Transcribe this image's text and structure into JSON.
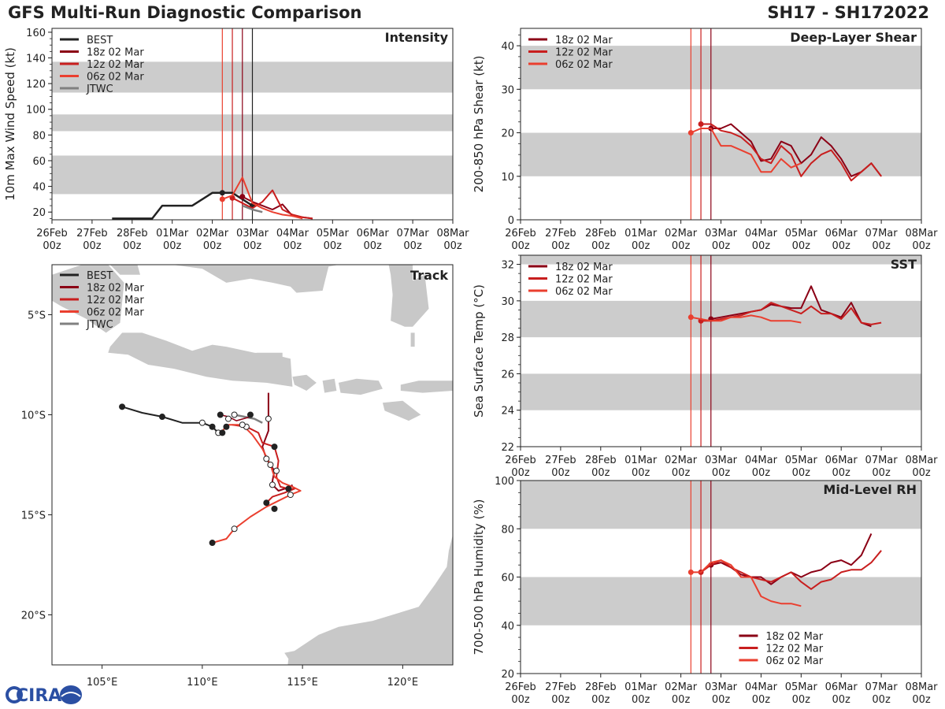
{
  "header": {
    "title_left": "GFS Multi-Run Diagnostic Comparison",
    "title_right": "SH17 - SH172022",
    "logo_text": "CIRA"
  },
  "colors": {
    "best": "#222222",
    "r18": "#8b0015",
    "r12": "#c81e1e",
    "r06": "#ea3f2f",
    "jtwc": "#808080",
    "band": "#cccccc",
    "land": "#c8c8c8"
  },
  "time_axis": {
    "ticks": [
      {
        "t": 0,
        "label": "26Feb 00z"
      },
      {
        "t": 1,
        "label": "27Feb 00z"
      },
      {
        "t": 2,
        "label": "28Feb 00z"
      },
      {
        "t": 3,
        "label": "01Mar 00z"
      },
      {
        "t": 4,
        "label": "02Mar 00z"
      },
      {
        "t": 5,
        "label": "03Mar 00z"
      },
      {
        "t": 6,
        "label": "04Mar 00z"
      },
      {
        "t": 7,
        "label": "05Mar 00z"
      },
      {
        "t": 8,
        "label": "06Mar 00z"
      },
      {
        "t": 9,
        "label": "07Mar 00z"
      },
      {
        "t": 10,
        "label": "08Mar 00z"
      }
    ],
    "vlines_main": [
      {
        "t": 4.25,
        "run": "r06"
      },
      {
        "t": 4.5,
        "run": "r12"
      },
      {
        "t": 4.75,
        "run": "r18"
      },
      {
        "t": 5.0,
        "run": "best"
      }
    ],
    "vlines_side": [
      {
        "t": 4.25,
        "run": "r06"
      },
      {
        "t": 4.5,
        "run": "r12"
      },
      {
        "t": 4.75,
        "run": "r18"
      }
    ]
  },
  "chart_data": [
    {
      "id": "intensity",
      "type": "line",
      "title": "Intensity",
      "ylabel": "10m Max Wind Speed (kt)",
      "xlim": [
        0,
        10
      ],
      "ylim": [
        14,
        163
      ],
      "yticks": [
        20,
        40,
        60,
        80,
        100,
        120,
        140,
        160
      ],
      "bands": [
        [
          34,
          64
        ],
        [
          83,
          96
        ],
        [
          113,
          137
        ]
      ],
      "legend": [
        "BEST",
        "18z 02 Mar",
        "12z 02 Mar",
        "06z 02 Mar",
        "JTWC"
      ],
      "series": [
        {
          "name": "BEST",
          "color": "best",
          "width": 2.5,
          "x": [
            1.5,
            2,
            2.5,
            2.75,
            3,
            3.25,
            3.5,
            3.75,
            4,
            4.25,
            4.5,
            4.75,
            5.0
          ],
          "y": [
            15,
            15,
            15,
            25,
            25,
            25,
            25,
            30,
            35,
            35,
            35,
            30,
            25
          ],
          "markers": [
            4.25,
            5.0
          ]
        },
        {
          "name": "18z 02 Mar",
          "color": "r18",
          "width": 2,
          "x": [
            4.75,
            5.0,
            5.25,
            5.5,
            5.75,
            6.0,
            6.25,
            6.5
          ],
          "y": [
            32,
            28,
            25,
            22,
            26,
            17,
            16,
            15
          ],
          "markers": [
            4.75
          ]
        },
        {
          "name": "12z 02 Mar",
          "color": "r12",
          "width": 2,
          "x": [
            4.5,
            4.75,
            5.0,
            5.25,
            5.5,
            5.75,
            6.0,
            6.25,
            6.5
          ],
          "y": [
            31,
            27,
            23,
            28,
            37,
            22,
            18,
            16,
            15
          ],
          "markers": [
            4.5
          ]
        },
        {
          "name": "06z 02 Mar",
          "color": "r06",
          "width": 2,
          "x": [
            4.25,
            4.5,
            4.75,
            5.0,
            5.25,
            5.5,
            5.75,
            6.0,
            6.25
          ],
          "y": [
            30,
            33,
            47,
            27,
            23,
            20,
            18,
            17,
            15
          ],
          "markers": [
            4.25
          ]
        },
        {
          "name": "JTWC",
          "color": "jtwc",
          "width": 2.5,
          "x": [
            4.75,
            5.0,
            5.25
          ],
          "y": [
            25,
            22,
            20
          ],
          "markers": []
        }
      ]
    },
    {
      "id": "shear",
      "type": "line",
      "title": "Deep-Layer Shear",
      "ylabel": "200-850 hPa Shear (kt)",
      "xlim": [
        0,
        10
      ],
      "ylim": [
        0,
        44
      ],
      "yticks": [
        0,
        10,
        20,
        30,
        40
      ],
      "bands": [
        [
          10,
          20
        ],
        [
          30,
          40
        ]
      ],
      "legend": [
        "18z 02 Mar",
        "12z 02 Mar",
        "06z 02 Mar"
      ],
      "series": [
        {
          "name": "18z 02 Mar",
          "color": "r18",
          "width": 2,
          "x": [
            4.75,
            5.0,
            5.25,
            5.5,
            5.75,
            6.0,
            6.25,
            6.5,
            6.75,
            7.0,
            7.25,
            7.5,
            7.75,
            8.0,
            8.25,
            8.5,
            8.75,
            9.0
          ],
          "y": [
            21,
            21,
            22,
            20,
            18,
            13.5,
            14,
            18,
            17,
            13,
            15,
            19,
            17,
            14,
            10,
            11,
            13,
            10
          ],
          "markers": [
            4.75
          ]
        },
        {
          "name": "12z 02 Mar",
          "color": "r12",
          "width": 2,
          "x": [
            4.5,
            4.75,
            5.0,
            5.25,
            5.5,
            5.75,
            6.0,
            6.25,
            6.5,
            6.75,
            7.0,
            7.25,
            7.5,
            7.75,
            8.0,
            8.25,
            8.5,
            8.75,
            9.0
          ],
          "y": [
            22,
            22,
            20.5,
            20,
            19,
            17,
            14,
            13,
            17,
            15,
            10,
            13,
            15,
            16,
            13,
            9,
            11,
            13,
            10
          ],
          "markers": [
            4.5
          ]
        },
        {
          "name": "06z 02 Mar",
          "color": "r06",
          "width": 2,
          "x": [
            4.25,
            4.5,
            4.75,
            5.0,
            5.25,
            5.5,
            5.75,
            6.0,
            6.25,
            6.5,
            6.75,
            7.0
          ],
          "y": [
            20,
            21,
            21,
            17,
            17,
            16,
            15,
            11,
            11,
            14,
            12,
            13
          ],
          "markers": [
            4.25
          ]
        }
      ]
    },
    {
      "id": "sst",
      "type": "line",
      "title": "SST",
      "ylabel": "Sea Surface Temp (°C)",
      "xlim": [
        0,
        10
      ],
      "ylim": [
        22,
        32.5
      ],
      "yticks": [
        22,
        24,
        26,
        28,
        30,
        32
      ],
      "bands": [
        [
          24,
          26
        ],
        [
          28,
          30
        ],
        [
          32,
          32.5
        ]
      ],
      "legend": [
        "18z 02 Mar",
        "12z 02 Mar",
        "06z 02 Mar"
      ],
      "series": [
        {
          "name": "18z 02 Mar",
          "color": "r18",
          "width": 2,
          "x": [
            4.75,
            5.0,
            5.25,
            5.5,
            5.75,
            6.0,
            6.25,
            6.5,
            6.75,
            7.0,
            7.25,
            7.5,
            7.75,
            8.0,
            8.25,
            8.5,
            8.75
          ],
          "y": [
            29.0,
            29.1,
            29.2,
            29.3,
            29.4,
            29.5,
            29.8,
            29.7,
            29.6,
            29.6,
            30.8,
            29.5,
            29.3,
            29.1,
            29.9,
            28.8,
            28.6
          ],
          "markers": [
            4.75
          ]
        },
        {
          "name": "12z 02 Mar",
          "color": "r12",
          "width": 2,
          "x": [
            4.5,
            4.75,
            5.0,
            5.25,
            5.5,
            5.75,
            6.0,
            6.25,
            6.5,
            6.75,
            7.0,
            7.25,
            7.5,
            7.75,
            8.0,
            8.25,
            8.5,
            8.75,
            9.0
          ],
          "y": [
            28.9,
            28.9,
            29.0,
            29.1,
            29.2,
            29.4,
            29.5,
            29.9,
            29.7,
            29.5,
            29.3,
            29.7,
            29.3,
            29.3,
            29.0,
            29.6,
            28.8,
            28.7,
            28.8
          ],
          "markers": [
            4.5
          ]
        },
        {
          "name": "06z 02 Mar",
          "color": "r06",
          "width": 2,
          "x": [
            4.25,
            4.5,
            4.75,
            5.0,
            5.25,
            5.5,
            5.75,
            6.0,
            6.25,
            6.5,
            6.75,
            7.0
          ],
          "y": [
            29.1,
            29.0,
            28.9,
            28.9,
            29.1,
            29.1,
            29.2,
            29.1,
            28.9,
            28.9,
            28.9,
            28.8
          ],
          "markers": [
            4.25
          ]
        }
      ]
    },
    {
      "id": "rh",
      "type": "line",
      "title": "Mid-Level RH",
      "ylabel": "700-500 hPa Humidity (%)",
      "xlim": [
        0,
        10
      ],
      "ylim": [
        20,
        100
      ],
      "yticks": [
        20,
        40,
        60,
        80,
        100
      ],
      "bands": [
        [
          40,
          60
        ],
        [
          80,
          100
        ]
      ],
      "legend": [
        "18z 02 Mar",
        "12z 02 Mar",
        "06z 02 Mar"
      ],
      "legend_position": "bottom-right",
      "series": [
        {
          "name": "18z 02 Mar",
          "color": "r18",
          "width": 2,
          "x": [
            4.75,
            5.0,
            5.25,
            5.5,
            5.75,
            6.0,
            6.25,
            6.5,
            6.75,
            7.0,
            7.25,
            7.5,
            7.75,
            8.0,
            8.25,
            8.5,
            8.75
          ],
          "y": [
            65,
            66,
            64,
            61,
            60,
            60,
            57,
            60,
            62,
            60,
            62,
            63,
            66,
            67,
            65,
            69,
            78
          ],
          "markers": [
            4.75
          ]
        },
        {
          "name": "12z 02 Mar",
          "color": "r12",
          "width": 2,
          "x": [
            4.5,
            4.75,
            5.0,
            5.25,
            5.5,
            5.75,
            6.0,
            6.25,
            6.5,
            6.75,
            7.0,
            7.25,
            7.5,
            7.75,
            8.0,
            8.25,
            8.5,
            8.75,
            9.0
          ],
          "y": [
            62,
            65,
            67,
            64,
            62,
            60,
            59,
            58,
            60,
            62,
            58,
            55,
            58,
            59,
            62,
            63,
            63,
            66,
            71
          ],
          "markers": [
            4.5
          ]
        },
        {
          "name": "06z 02 Mar",
          "color": "r06",
          "width": 2,
          "x": [
            4.25,
            4.5,
            4.75,
            5.0,
            5.25,
            5.5,
            5.75,
            6.0,
            6.25,
            6.5,
            6.75,
            7.0
          ],
          "y": [
            62,
            62,
            66,
            67,
            65,
            60,
            60,
            52,
            50,
            49,
            49,
            48
          ],
          "markers": [
            4.25
          ]
        }
      ]
    },
    {
      "id": "track",
      "type": "line",
      "title": "Track",
      "xlabel": "",
      "ylabel": "",
      "xlim": [
        102.5,
        122.5
      ],
      "ylim": [
        -22.5,
        -2.5
      ],
      "xticks": [
        {
          "v": 105,
          "label": "105°E"
        },
        {
          "v": 110,
          "label": "110°E"
        },
        {
          "v": 115,
          "label": "115°E"
        },
        {
          "v": 120,
          "label": "120°E"
        }
      ],
      "yticks": [
        {
          "v": -5,
          "label": "5°S"
        },
        {
          "v": -10,
          "label": "10°S"
        },
        {
          "v": -15,
          "label": "15°S"
        },
        {
          "v": -20,
          "label": "20°S"
        }
      ],
      "legend": [
        "BEST",
        "18z 02 Mar",
        "12z 02 Mar",
        "06z 02 Mar",
        "JTWC"
      ],
      "series": [
        {
          "name": "BEST",
          "color": "best",
          "width": 2,
          "lon": [
            106.0,
            107.0,
            108.0,
            109.0,
            110.0,
            110.5,
            110.8,
            111.0
          ],
          "lat": [
            -9.6,
            -9.9,
            -10.1,
            -10.4,
            -10.4,
            -10.6,
            -10.9,
            -10.9
          ],
          "dots": [
            [
              106.0,
              -9.6,
              "f"
            ],
            [
              108.0,
              -10.1,
              "f"
            ],
            [
              110.0,
              -10.4,
              "o"
            ],
            [
              110.5,
              -10.6,
              "f"
            ],
            [
              110.8,
              -10.9,
              "o"
            ],
            [
              111.0,
              -10.9,
              "f"
            ]
          ]
        },
        {
          "name": "18z 02 Mar",
          "color": "r18",
          "width": 2,
          "lon": [
            113.3,
            113.3,
            113.3,
            113.3,
            113.0,
            113.2,
            113.6,
            113.5,
            113.5,
            113.8,
            114.4,
            114.5
          ],
          "lat": [
            -8.9,
            -9.5,
            -10.2,
            -10.8,
            -11.6,
            -12.2,
            -12.8,
            -13.3,
            -13.5,
            -13.8,
            -13.6,
            -13.5
          ],
          "dots": [
            [
              113.3,
              -10.2,
              "o"
            ],
            [
              113.2,
              -12.2,
              "o"
            ],
            [
              113.5,
              -13.5,
              "o"
            ]
          ]
        },
        {
          "name": "12z 02 Mar",
          "color": "r12",
          "width": 2,
          "lon": [
            111.5,
            112.2,
            112.8,
            113.0,
            113.6,
            113.8,
            113.7,
            113.9,
            114.3,
            114.6,
            114.1,
            113.5,
            113.2
          ],
          "lat": [
            -10.5,
            -10.6,
            -10.9,
            -11.4,
            -11.6,
            -12.3,
            -13.1,
            -13.6,
            -13.7,
            -13.7,
            -13.9,
            -14.1,
            -14.4
          ],
          "dots": [
            [
              112.2,
              -10.6,
              "o"
            ],
            [
              113.6,
              -11.6,
              "f"
            ],
            [
              113.7,
              -12.8,
              "o"
            ],
            [
              114.3,
              -13.7,
              "f"
            ],
            [
              113.2,
              -14.4,
              "f"
            ]
          ]
        },
        {
          "name": "06z 02 Mar",
          "color": "r06",
          "width": 2,
          "lon": [
            111.0,
            111.3,
            112.0,
            112.5,
            113.0,
            113.4,
            113.6,
            114.0,
            114.5,
            114.9,
            114.4,
            113.8,
            113.2,
            112.4,
            111.6,
            111.2,
            110.5
          ],
          "lat": [
            -10.8,
            -10.5,
            -10.5,
            -11.0,
            -11.7,
            -12.5,
            -13.1,
            -13.4,
            -13.6,
            -13.8,
            -14.0,
            -14.3,
            -14.6,
            -15.1,
            -15.7,
            -16.2,
            -16.4
          ],
          "dots": [
            [
              111.2,
              -10.6,
              "f"
            ],
            [
              112.0,
              -10.5,
              "o"
            ],
            [
              113.4,
              -12.5,
              "o"
            ],
            [
              114.4,
              -14.0,
              "o"
            ],
            [
              113.6,
              -14.7,
              "f"
            ],
            [
              111.6,
              -15.7,
              "o"
            ],
            [
              110.5,
              -16.4,
              "f"
            ]
          ]
        },
        {
          "name": "JTWC",
          "color": "jtwc",
          "width": 2.5,
          "lon": [
            111.6,
            112.1,
            112.6,
            113.0
          ],
          "lat": [
            -10.0,
            -10.1,
            -10.2,
            -10.4
          ],
          "dots": [
            [
              111.6,
              -10.0,
              "o"
            ]
          ]
        },
        {
          "name": "red-origin",
          "color": "r18",
          "width": 1.5,
          "lon": [
            110.9,
            111.3,
            111.7,
            112.4
          ],
          "lat": [
            -10.0,
            -10.1,
            -10.3,
            -10.1
          ],
          "dots": [
            [
              110.9,
              -10.0,
              "f"
            ],
            [
              111.3,
              -10.2,
              "o"
            ],
            [
              112.4,
              -10.0,
              "f"
            ]
          ]
        }
      ]
    }
  ]
}
